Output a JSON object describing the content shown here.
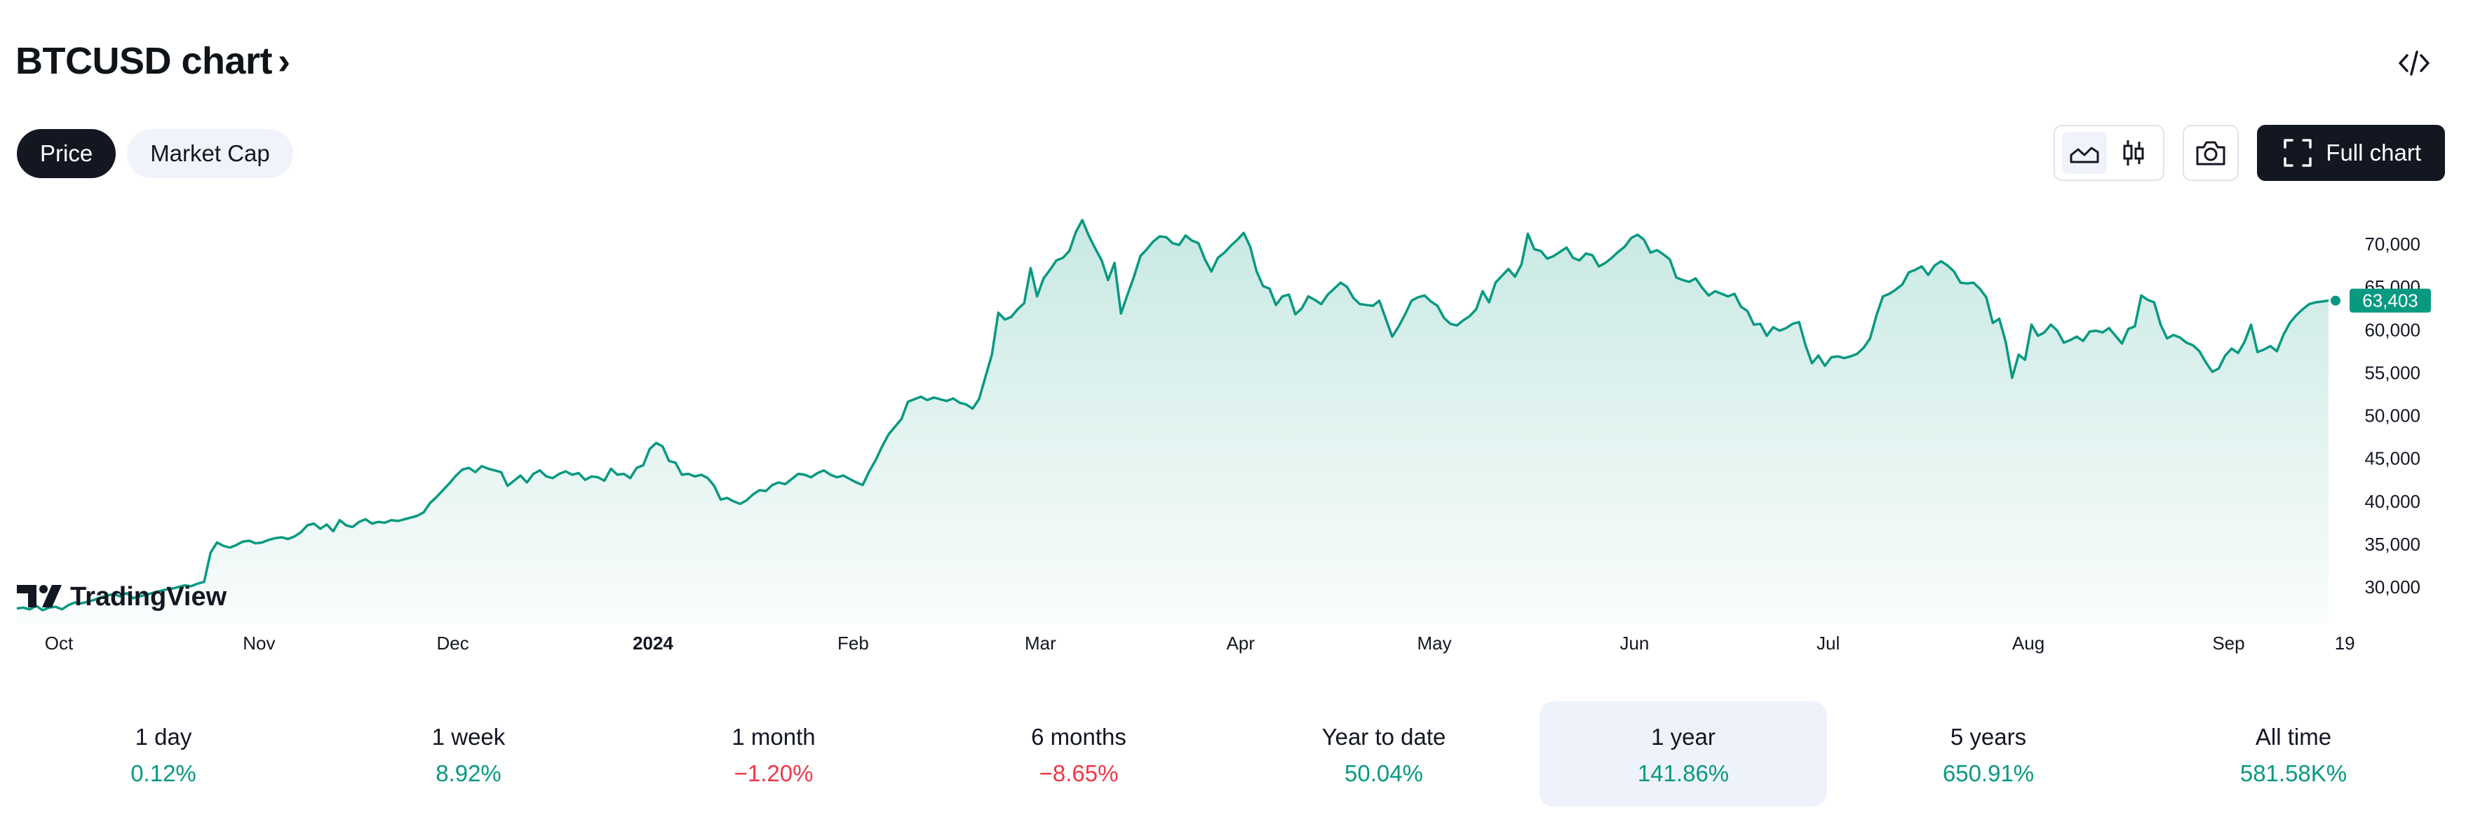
{
  "header": {
    "title": "BTCUSD chart",
    "chevron": "›"
  },
  "tabs": [
    {
      "label": "Price",
      "active": true
    },
    {
      "label": "Market Cap",
      "active": false
    }
  ],
  "toolbar": {
    "area_icon": "area-chart-icon",
    "candle_icon": "candlestick-icon",
    "camera_icon": "camera-icon",
    "full_chart_label": "Full chart",
    "embed_icon": "code-embed-icon"
  },
  "colors": {
    "line": "#089981",
    "fill_top": "#cfe9e1",
    "dark": "#131722",
    "positive": "#089981",
    "negative": "#f23645"
  },
  "logo_text": "TradingView",
  "chart_data": {
    "type": "area",
    "title": "",
    "xlabel": "",
    "ylabel": "",
    "ylim": [
      26000,
      74000
    ],
    "y_ticks": [
      "70,000",
      "65,000",
      "60,000",
      "55,000",
      "50,000",
      "45,000",
      "40,000",
      "35,000",
      "30,000"
    ],
    "y_tick_values": [
      70000,
      65000,
      60000,
      55000,
      50000,
      45000,
      40000,
      35000,
      30000
    ],
    "x_ticks": [
      {
        "label": "Oct",
        "bold": false,
        "t": 0.0
      },
      {
        "label": "Nov",
        "bold": false,
        "t": 31
      },
      {
        "label": "Dec",
        "bold": false,
        "t": 61
      },
      {
        "label": "2024",
        "bold": true,
        "t": 92
      },
      {
        "label": "Feb",
        "bold": false,
        "t": 123
      },
      {
        "label": "Mar",
        "bold": false,
        "t": 152
      },
      {
        "label": "Apr",
        "bold": false,
        "t": 183
      },
      {
        "label": "May",
        "bold": false,
        "t": 213
      },
      {
        "label": "Jun",
        "bold": false,
        "t": 244
      },
      {
        "label": "Jul",
        "bold": false,
        "t": 274
      },
      {
        "label": "Aug",
        "bold": false,
        "t": 305
      },
      {
        "label": "Sep",
        "bold": false,
        "t": 336
      },
      {
        "label": "19",
        "bold": false,
        "t": 354
      }
    ],
    "last_price_label": "63,403",
    "last_price": 63403,
    "series": [
      {
        "values": [
          27500,
          27600,
          27400,
          27800,
          27300,
          27600,
          27700,
          27400,
          27900,
          28200,
          28100,
          28300,
          28500,
          28800,
          29000,
          29200,
          28900,
          29300,
          28700,
          28900,
          29100,
          29300,
          29500,
          29700,
          29800,
          30000,
          30200,
          30100,
          30400,
          30600,
          34000,
          35200,
          34800,
          34600,
          34900,
          35300,
          35400,
          35100,
          35200,
          35500,
          35700,
          35800,
          35600,
          35900,
          36400,
          37200,
          37400,
          36800,
          37300,
          36500,
          37800,
          37200,
          37000,
          37600,
          37900,
          37400,
          37600,
          37500,
          37800,
          37700,
          37900,
          38100,
          38300,
          38700,
          39800,
          40500,
          41300,
          42100,
          43000,
          43700,
          43900,
          43400,
          44100,
          43800,
          43600,
          43400,
          41800,
          42400,
          43000,
          42200,
          43200,
          43600,
          42900,
          42700,
          43200,
          43500,
          43100,
          43300,
          42500,
          42900,
          42800,
          42400,
          43800,
          43100,
          43200,
          42700,
          43900,
          44200,
          46100,
          46800,
          46400,
          44700,
          44500,
          43100,
          43200,
          42900,
          43100,
          42700,
          41800,
          40200,
          40400,
          40000,
          39700,
          40100,
          40800,
          41300,
          41200,
          41900,
          42200,
          42000,
          42600,
          43200,
          43100,
          42800,
          43300,
          43600,
          43100,
          42800,
          43000,
          42600,
          42200,
          41900,
          43500,
          44800,
          46400,
          47800,
          48700,
          49600,
          51600,
          51900,
          52200,
          51800,
          52100,
          51900,
          51700,
          52000,
          51500,
          51300,
          50800,
          51900,
          54500,
          57100,
          62000,
          61200,
          61500,
          62400,
          63100,
          67200,
          63900,
          66000,
          67000,
          68100,
          68400,
          69200,
          71400,
          72800,
          71000,
          69500,
          68100,
          65800,
          67800,
          61900,
          64100,
          66200,
          68600,
          69400,
          70300,
          70900,
          70800,
          70100,
          69900,
          71000,
          70400,
          70100,
          68200,
          66800,
          68400,
          69000,
          69800,
          70500,
          71300,
          69700,
          66800,
          65100,
          64800,
          62900,
          63900,
          64100,
          61800,
          62500,
          63900,
          63500,
          63000,
          64100,
          64800,
          65500,
          65000,
          63700,
          63000,
          62900,
          62800,
          63400,
          61300,
          59200,
          60400,
          61800,
          63400,
          63800,
          64000,
          63300,
          62800,
          61400,
          60700,
          60500,
          61100,
          61600,
          62400,
          64500,
          63200,
          65500,
          66300,
          67100,
          66200,
          67600,
          71200,
          69400,
          69200,
          68300,
          68600,
          69100,
          69600,
          68400,
          68100,
          68900,
          68700,
          67400,
          67800,
          68400,
          69100,
          69700,
          70700,
          71100,
          70500,
          69000,
          69300,
          68800,
          68200,
          66100,
          65800,
          65600,
          66000,
          64900,
          64000,
          64500,
          64200,
          63900,
          64200,
          62700,
          62200,
          60600,
          60700,
          59300,
          60300,
          59900,
          60200,
          60700,
          60900,
          58200,
          56100,
          57000,
          55800,
          56800,
          56900,
          56700,
          56900,
          57200,
          57900,
          59000,
          61700,
          63900,
          64200,
          64700,
          65300,
          66700,
          67000,
          67400,
          66400,
          67500,
          68000,
          67500,
          66800,
          65500,
          65400,
          65500,
          64800,
          63800,
          60800,
          61300,
          58600,
          54400,
          57100,
          56500,
          60600,
          59300,
          59700,
          60600,
          59900,
          58500,
          58800,
          59200,
          58700,
          59800,
          59900,
          59700,
          60200,
          59300,
          58400,
          60100,
          60400,
          64000,
          63500,
          63200,
          60600,
          59000,
          59400,
          59100,
          58500,
          58200,
          57500,
          56200,
          55100,
          55500,
          57000,
          57800,
          57300,
          58600,
          60600,
          57400,
          57700,
          58100,
          57500,
          59400,
          60800,
          61700,
          62400,
          63000,
          63200,
          63300,
          63403
        ]
      }
    ]
  },
  "periods": [
    {
      "label": "1 day",
      "value": "0.12%",
      "sign": "pos",
      "active": false
    },
    {
      "label": "1 week",
      "value": "8.92%",
      "sign": "pos",
      "active": false
    },
    {
      "label": "1 month",
      "value": "−1.20%",
      "sign": "neg",
      "active": false
    },
    {
      "label": "6 months",
      "value": "−8.65%",
      "sign": "neg",
      "active": false
    },
    {
      "label": "Year to date",
      "value": "50.04%",
      "sign": "pos",
      "active": false
    },
    {
      "label": "1 year",
      "value": "141.86%",
      "sign": "pos",
      "active": true
    },
    {
      "label": "5 years",
      "value": "650.91%",
      "sign": "pos",
      "active": false
    },
    {
      "label": "All time",
      "value": "581.58K%",
      "sign": "pos",
      "active": false
    }
  ]
}
